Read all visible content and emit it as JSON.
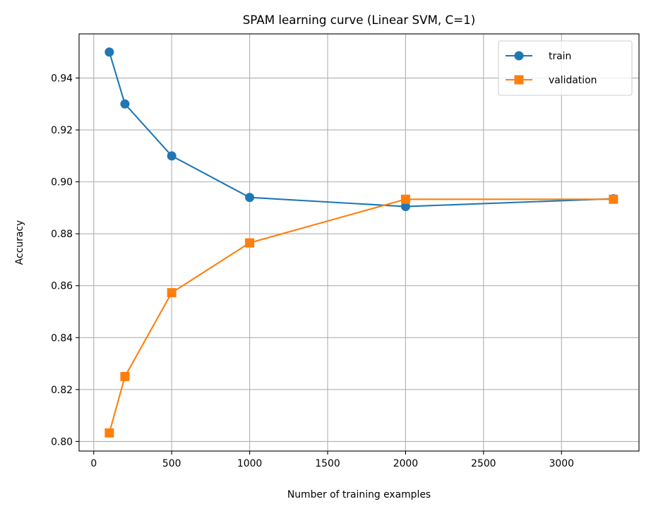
{
  "chart_data": {
    "type": "line",
    "title": "SPAM learning curve (Linear SVM, C=1)",
    "xlabel": "Number of training examples",
    "ylabel": "Accuracy",
    "x": [
      100,
      200,
      500,
      1000,
      2000,
      3333
    ],
    "series": [
      {
        "name": "train",
        "values": [
          0.95,
          0.93,
          0.91,
          0.894,
          0.8905,
          0.8935
        ],
        "color": "#1f77b4",
        "marker": "circle"
      },
      {
        "name": "validation",
        "values": [
          0.8033,
          0.825,
          0.8573,
          0.8765,
          0.8933,
          0.8933
        ],
        "color": "#ff7f0e",
        "marker": "square"
      }
    ],
    "xlim": [
      -94,
      3497
    ],
    "ylim": [
      0.7963,
      0.957
    ],
    "xticks": [
      0,
      500,
      1000,
      1500,
      2000,
      2500,
      3000
    ],
    "yticks": [
      0.8,
      0.82,
      0.84,
      0.86,
      0.88,
      0.9,
      0.92,
      0.94
    ],
    "xtick_labels": [
      "0",
      "500",
      "1000",
      "1500",
      "2000",
      "2500",
      "3000"
    ],
    "ytick_labels": [
      "0.80",
      "0.82",
      "0.84",
      "0.86",
      "0.88",
      "0.90",
      "0.92",
      "0.94"
    ],
    "grid": true,
    "legend_position": "top-right"
  }
}
